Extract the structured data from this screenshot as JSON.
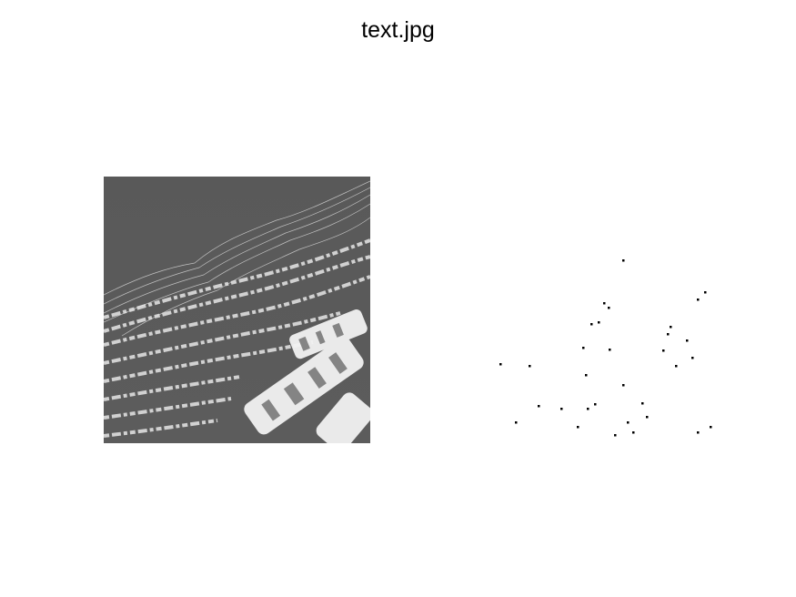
{
  "figure": {
    "title": "text.jpg"
  },
  "left_image": {
    "description_colors": {
      "background": "#595959",
      "text": "#e6e6e6"
    }
  },
  "right_panel": {
    "point_color": "#000000"
  }
}
